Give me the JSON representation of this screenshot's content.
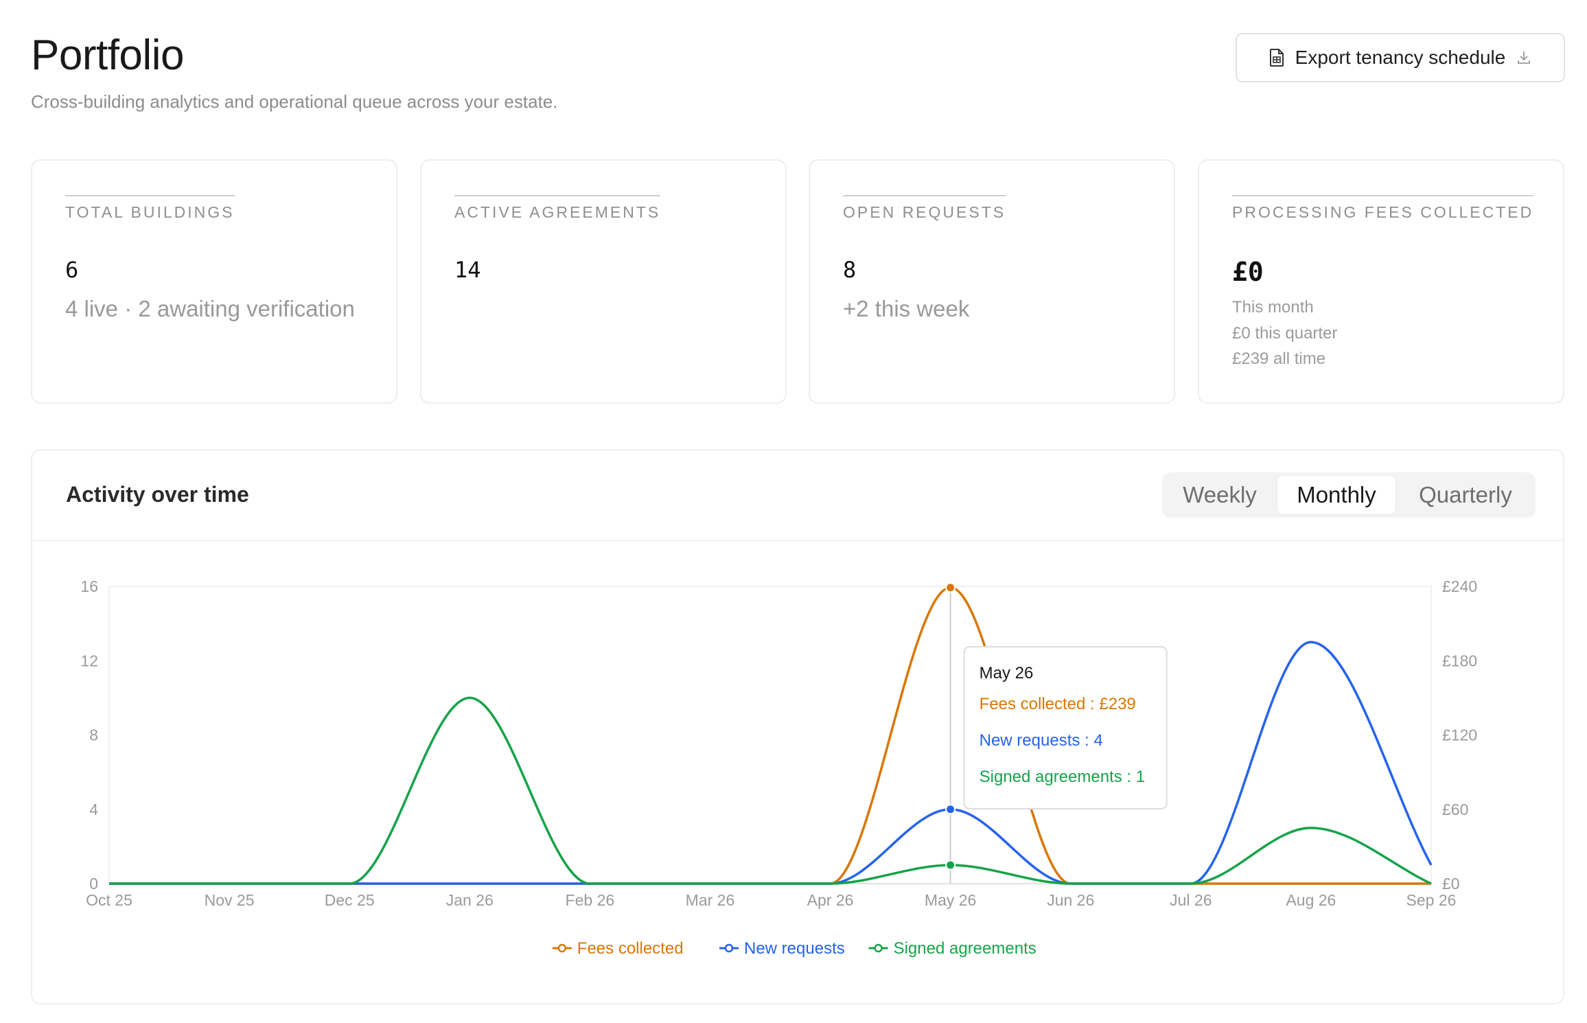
{
  "header": {
    "title": "Portfolio",
    "subtitle": "Cross-building analytics and operational queue across your estate.",
    "export_label": "Export tenancy schedule",
    "export_icon": "spreadsheet-icon",
    "download_icon": "download-icon"
  },
  "kpis": {
    "buildings": {
      "label": "TOTAL BUILDINGS",
      "value": "6",
      "note": "4 live · 2 awaiting verification"
    },
    "agreements": {
      "label": "ACTIVE AGREEMENTS",
      "value": "14"
    },
    "requests": {
      "label": "OPEN REQUESTS",
      "value": "8",
      "note": "+2 this week"
    },
    "fees": {
      "label": "PROCESSING FEES COLLECTED",
      "value": "£0",
      "month": "This month",
      "quarter": "£0 this quarter",
      "all_time": "£239 all time"
    }
  },
  "activity": {
    "title": "Activity over time",
    "ranges": [
      "Weekly",
      "Monthly",
      "Quarterly"
    ],
    "selected_range": "Monthly"
  },
  "chart_data": {
    "type": "line",
    "x": [
      "Oct 25",
      "Nov 25",
      "Dec 25",
      "Jan 26",
      "Feb 26",
      "Mar 26",
      "Apr 26",
      "May 26",
      "Jun 26",
      "Jul 26",
      "Aug 26",
      "Sep 26"
    ],
    "y_left_ticks": [
      "0",
      "4",
      "8",
      "12",
      "16"
    ],
    "y_left_range": [
      0,
      16
    ],
    "y_right_ticks": [
      "£0",
      "£60",
      "£120",
      "£180",
      "£240"
    ],
    "y_right_range": [
      0,
      240
    ],
    "grid": false,
    "legend_position": "bottom-center",
    "series": [
      {
        "name": "Fees collected",
        "axis": "right",
        "color": "#d97706",
        "values": [
          0,
          0,
          0,
          0,
          0,
          0,
          0,
          239,
          0,
          0,
          0,
          0
        ]
      },
      {
        "name": "New requests",
        "axis": "left",
        "color": "#2563eb",
        "values": [
          0,
          0,
          0,
          0,
          0,
          0,
          0,
          4,
          0,
          0,
          13,
          1
        ]
      },
      {
        "name": "Signed agreements",
        "axis": "left",
        "color": "#16a34a",
        "values": [
          0,
          0,
          0,
          10,
          0,
          0,
          0,
          1,
          0,
          0,
          3,
          0
        ]
      }
    ],
    "tooltip": {
      "title": "May 26",
      "index": 7,
      "lines": [
        "Fees collected : £239",
        "New requests : 4",
        "Signed agreements : 1"
      ]
    }
  }
}
